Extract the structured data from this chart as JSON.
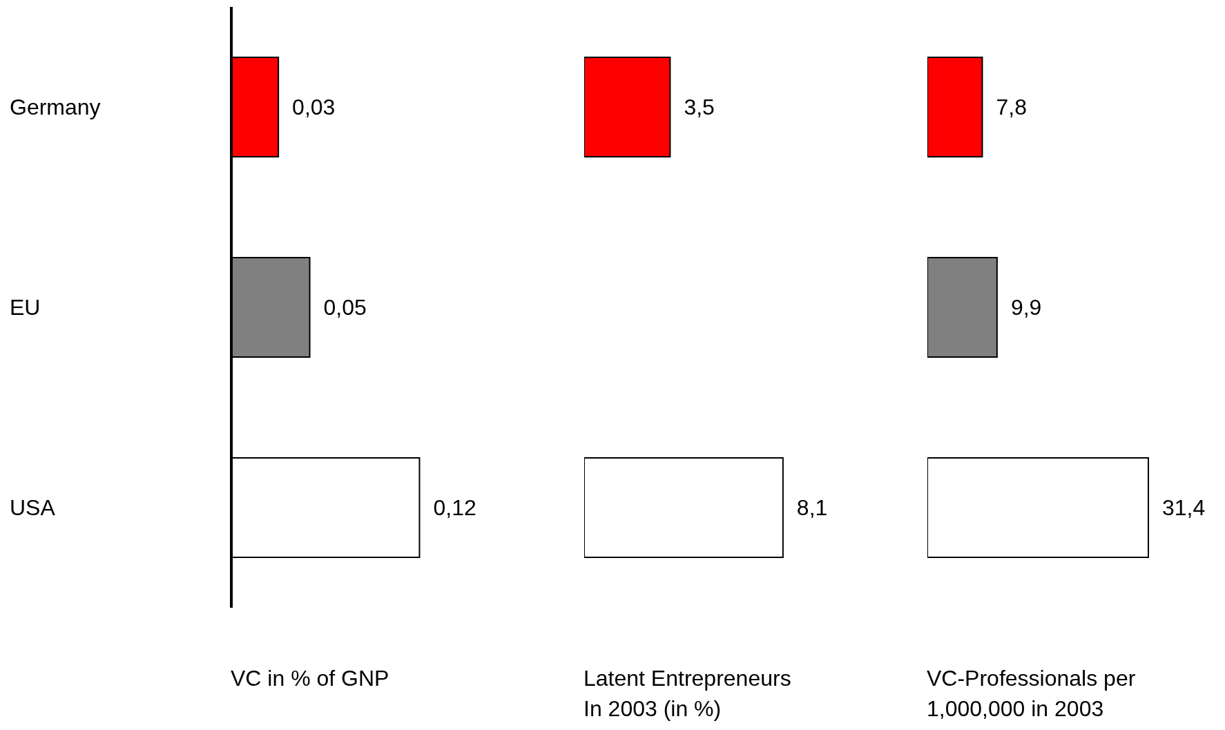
{
  "chart_data": [
    {
      "type": "bar",
      "orientation": "horizontal",
      "categories": [
        "Germany",
        "EU",
        "USA"
      ],
      "values": [
        0.03,
        0.05,
        0.12
      ],
      "value_labels": [
        "0,03",
        "0,05",
        "0,12"
      ],
      "colors": [
        "#ff0000",
        "#808080",
        "#ffffff"
      ],
      "xlabel": "VC in % of GNP",
      "tick_labels": "y",
      "grid": false,
      "legend": false
    },
    {
      "type": "bar",
      "orientation": "horizontal",
      "categories": [
        null,
        null,
        null
      ],
      "values": [
        3.5,
        null,
        8.1
      ],
      "value_labels": [
        "3,5",
        null,
        "8,1"
      ],
      "colors": [
        "#ff0000",
        "#808080",
        "#ffffff"
      ],
      "xlabel": "Latent Entrepreneurs\nIn 2003 (in %)",
      "tick_labels": false,
      "grid": false,
      "legend": false
    },
    {
      "type": "bar",
      "orientation": "horizontal",
      "categories": [
        null,
        null,
        null
      ],
      "values": [
        7.8,
        9.9,
        31.4
      ],
      "value_labels": [
        "7,8",
        "9,9",
        "31,4"
      ],
      "colors": [
        "#ff0000",
        "#808080",
        "#ffffff"
      ],
      "xlabel": "VC-Professionals per\n1,000,000 in 2003",
      "tick_labels": false,
      "grid": false,
      "legend": false
    }
  ]
}
